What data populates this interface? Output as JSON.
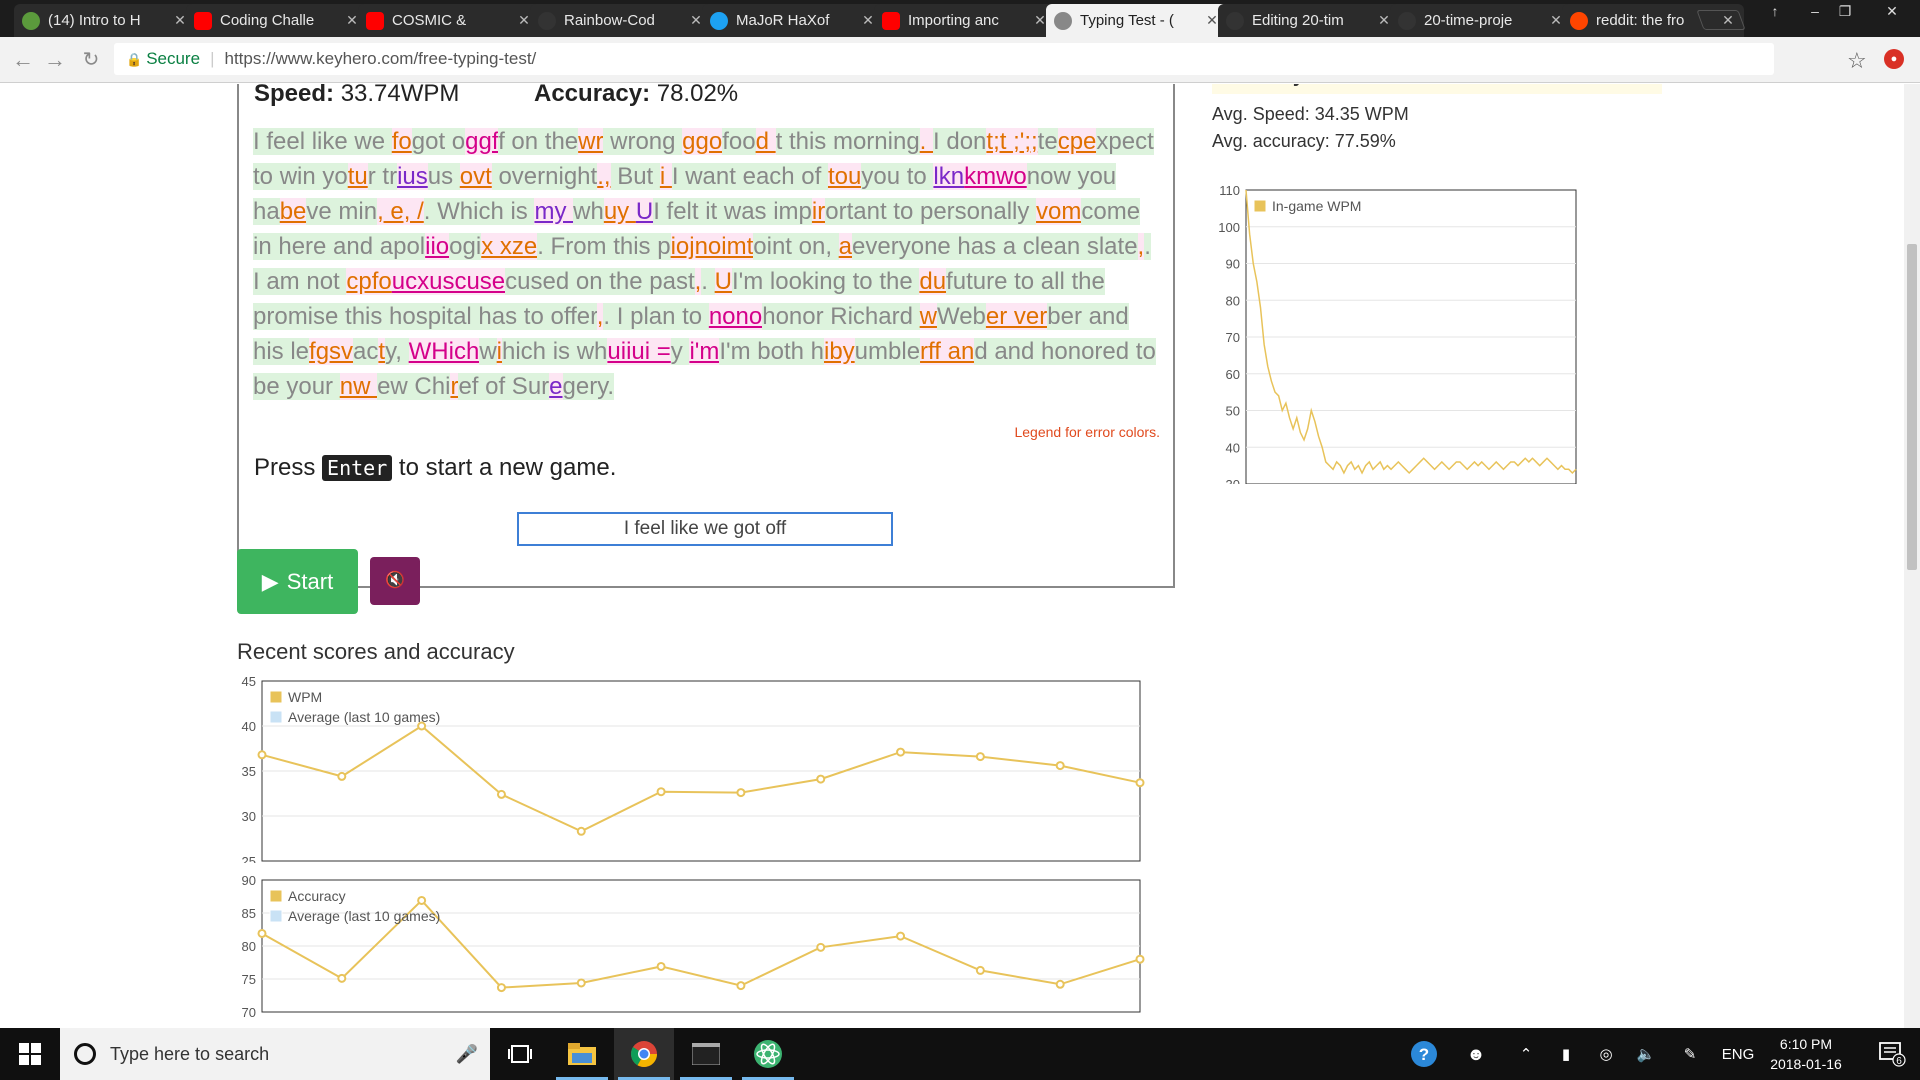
{
  "browser": {
    "tabs": [
      {
        "title": "(14) Intro to H",
        "favicon": "leaf-icon",
        "color": "#5b9a3c"
      },
      {
        "title": "Coding Challe",
        "favicon": "youtube-icon",
        "color": "#ff0000"
      },
      {
        "title": "COSMIC &",
        "favicon": "youtube-icon",
        "color": "#ff0000"
      },
      {
        "title": "Rainbow-Cod",
        "favicon": "github-icon",
        "color": "#333333"
      },
      {
        "title": "MaJoR HaXof",
        "favicon": "twitter-icon",
        "color": "#1da1f2"
      },
      {
        "title": "Importing anc",
        "favicon": "youtube-icon",
        "color": "#ff0000"
      },
      {
        "title": "Typing Test - (",
        "favicon": "page-icon",
        "color": "#888888"
      },
      {
        "title": "Editing 20-tim",
        "favicon": "github-icon",
        "color": "#333333"
      },
      {
        "title": "20-time-proje",
        "favicon": "github-icon",
        "color": "#333333"
      },
      {
        "title": "reddit: the fro",
        "favicon": "reddit-icon",
        "color": "#ff4500"
      }
    ],
    "active_tab": 6,
    "secure_label": "Secure",
    "url": "https://www.keyhero.com/free-typing-test/"
  },
  "game": {
    "speed_label": "Speed:",
    "speed_value": "33.74WPM",
    "accuracy_label": "Accuracy:",
    "accuracy_value": "78.02%",
    "legend_link": "Legend for error colors.",
    "press_prefix": "Press",
    "press_key": "Enter",
    "press_suffix": "to start a new game.",
    "input_value": "I feel like we got off",
    "start_label": "Start",
    "recent_heading": "Recent scores and accuracy"
  },
  "typed_segments": [
    [
      "I feel like we ",
      "g"
    ],
    [
      "fo",
      "o"
    ],
    [
      "got o",
      "g"
    ],
    [
      "ggf",
      "m"
    ],
    [
      "f on the",
      "g"
    ],
    [
      "wr",
      "o"
    ],
    [
      " wrong ",
      "g"
    ],
    [
      "ggo",
      "o"
    ],
    [
      "foo",
      "g"
    ],
    [
      "d ",
      "o"
    ],
    [
      "t this morning",
      "g"
    ],
    [
      ". ",
      "o"
    ],
    [
      "I don",
      "g"
    ],
    [
      "t;t ;';;",
      "o"
    ],
    [
      "t",
      "g"
    ],
    [
      "e",
      "g"
    ],
    [
      "cpe",
      "o"
    ],
    [
      "xpect to ",
      "g"
    ],
    [
      "win yo",
      "g"
    ],
    [
      "tu",
      "o"
    ],
    [
      "r tr",
      "g"
    ],
    [
      "ius",
      "p"
    ],
    [
      "us ",
      "g"
    ],
    [
      "ovt",
      "o"
    ],
    [
      " overnight",
      "g"
    ],
    [
      ".,",
      "o"
    ],
    [
      " But ",
      "g"
    ],
    [
      "i ",
      "o"
    ],
    [
      "I want each of ",
      "g"
    ],
    [
      "tou",
      "o"
    ],
    [
      "you to ",
      "g"
    ],
    [
      "lkn",
      "p"
    ],
    [
      "kmwo",
      "m"
    ],
    [
      "now you ha",
      "g"
    ],
    [
      "be",
      "o"
    ],
    [
      "ve min",
      "g"
    ],
    [
      ", e, /",
      "o"
    ],
    [
      ". Which ",
      "g"
    ],
    [
      "is ",
      "g"
    ],
    [
      "my ",
      "p"
    ],
    [
      "wh",
      "g"
    ],
    [
      "uy ",
      "o"
    ],
    [
      "U",
      "p"
    ],
    [
      "I felt it was imp",
      "g"
    ],
    [
      "ir",
      "o"
    ],
    [
      "ortant ",
      "g"
    ],
    [
      "to personally ",
      "g"
    ],
    [
      "vom",
      "o"
    ],
    [
      "come in here and apol",
      "g"
    ],
    [
      "iio",
      "m"
    ],
    [
      "ogi",
      "g"
    ],
    [
      "x xze",
      "o"
    ],
    [
      ". From this p",
      "g"
    ],
    [
      "iojnoimt",
      "o"
    ],
    [
      "oint on, ",
      "g"
    ],
    [
      "a",
      "o"
    ],
    [
      "everyone has a clean slate",
      "g"
    ],
    [
      ",",
      "o"
    ],
    [
      ". I am not ",
      "g"
    ],
    [
      "cpfo",
      "o"
    ],
    [
      "ucxuscuse",
      "m"
    ],
    [
      "cused ",
      "g"
    ],
    [
      "on the past",
      "g"
    ],
    [
      ",",
      "o"
    ],
    [
      ". ",
      "g"
    ],
    [
      "U",
      "o"
    ],
    [
      "I'm ",
      "g"
    ],
    [
      "looking to the ",
      "g"
    ],
    [
      "du",
      "o"
    ],
    [
      "future to all ",
      "g"
    ],
    [
      "the",
      "g"
    ],
    [
      " promise this hospital has to offer",
      "g"
    ],
    [
      ",",
      "o"
    ],
    [
      ". I plan to ",
      "g"
    ],
    [
      "nono",
      "m"
    ],
    [
      "honor Richard ",
      "g"
    ],
    [
      "w",
      "o"
    ],
    [
      "Web",
      "g"
    ],
    [
      "er ver",
      "o"
    ],
    [
      "ber and his le",
      "g"
    ],
    [
      "fgsv",
      "o"
    ],
    [
      "ac",
      "g"
    ],
    [
      "t",
      "o"
    ],
    [
      "y, ",
      "g"
    ],
    [
      "WHich",
      "m"
    ],
    [
      "w",
      "g"
    ],
    [
      "i",
      "o"
    ],
    [
      "hich ",
      "g"
    ],
    [
      "is wh",
      "g"
    ],
    [
      "uiiui =",
      "m"
    ],
    [
      "y ",
      "g"
    ],
    [
      "i'm",
      "m"
    ],
    [
      "I'm both h",
      "g"
    ],
    [
      "iby",
      "o"
    ],
    [
      "umble",
      "g"
    ],
    [
      "rff an",
      "o"
    ],
    [
      "d and honored to be your ",
      "g"
    ],
    [
      "nw ",
      "o"
    ],
    [
      "ew Chi",
      "g"
    ],
    [
      "r",
      "o"
    ],
    [
      "ef of Sur",
      "g"
    ],
    [
      "e",
      "p"
    ],
    [
      "gery.",
      "g"
    ]
  ],
  "sidebar": {
    "accuracy_partial": "Accuracy: 78.02%",
    "avg_speed": "Avg. Speed: 34.35 WPM",
    "avg_accuracy": "Avg. accuracy: 77.59%"
  },
  "colors": {
    "line": "#e8c35a",
    "avg_legend": "#c9e2f5",
    "start_green": "#3eb55f",
    "mute_purple": "#7a1f5c"
  },
  "chart_data": [
    {
      "type": "line",
      "series": [
        {
          "name": "In-game WPM",
          "values": [
            110,
            98,
            90,
            85,
            78,
            68,
            62,
            58,
            55,
            54,
            50,
            52,
            48,
            45,
            48,
            44,
            42,
            45,
            50,
            47,
            43,
            40,
            36,
            35,
            34,
            36,
            35,
            33,
            35,
            36,
            34,
            35,
            33,
            35,
            36,
            34,
            35,
            36,
            34,
            35,
            34,
            35,
            36,
            35,
            34,
            33,
            34,
            35,
            36,
            37,
            36,
            35,
            34,
            35,
            36,
            35,
            34,
            35,
            36,
            36,
            35,
            34,
            35,
            36,
            35,
            36,
            35,
            34,
            35,
            36,
            35,
            34,
            35,
            36,
            36,
            35,
            36,
            37,
            36,
            37,
            36,
            35,
            36,
            37,
            36,
            35,
            34,
            35,
            34,
            34,
            33,
            34
          ]
        }
      ],
      "yticks": [
        "110",
        "100",
        "90",
        "80",
        "70",
        "60",
        "50",
        "40",
        "30"
      ],
      "ylim": [
        30,
        110
      ],
      "legend": "top-left"
    },
    {
      "type": "line",
      "series": [
        {
          "name": "WPM",
          "values": [
            36.8,
            34.4,
            40.0,
            32.4,
            28.3,
            32.7,
            32.6,
            34.1,
            37.1,
            36.6,
            35.6,
            33.7
          ]
        },
        {
          "name": "Average (last 10 games)",
          "values": []
        }
      ],
      "yticks": [
        "45",
        "40",
        "35",
        "30",
        "25"
      ],
      "ylim": [
        25,
        45
      ],
      "legend": "top-left"
    },
    {
      "type": "line",
      "series": [
        {
          "name": "Accuracy",
          "values": [
            81.9,
            75.1,
            86.9,
            73.7,
            74.4,
            76.9,
            74.0,
            79.8,
            81.5,
            76.3,
            74.2,
            78.0
          ]
        },
        {
          "name": "Average (last 10 games)",
          "values": []
        }
      ],
      "yticks": [
        "90",
        "85",
        "80",
        "75",
        "70"
      ],
      "ylim": [
        70,
        90
      ],
      "legend": "top-left"
    }
  ],
  "taskbar": {
    "search_placeholder": "Type here to search",
    "lang": "ENG",
    "time": "6:10 PM",
    "date": "2018-01-16",
    "notif_count": "6"
  }
}
